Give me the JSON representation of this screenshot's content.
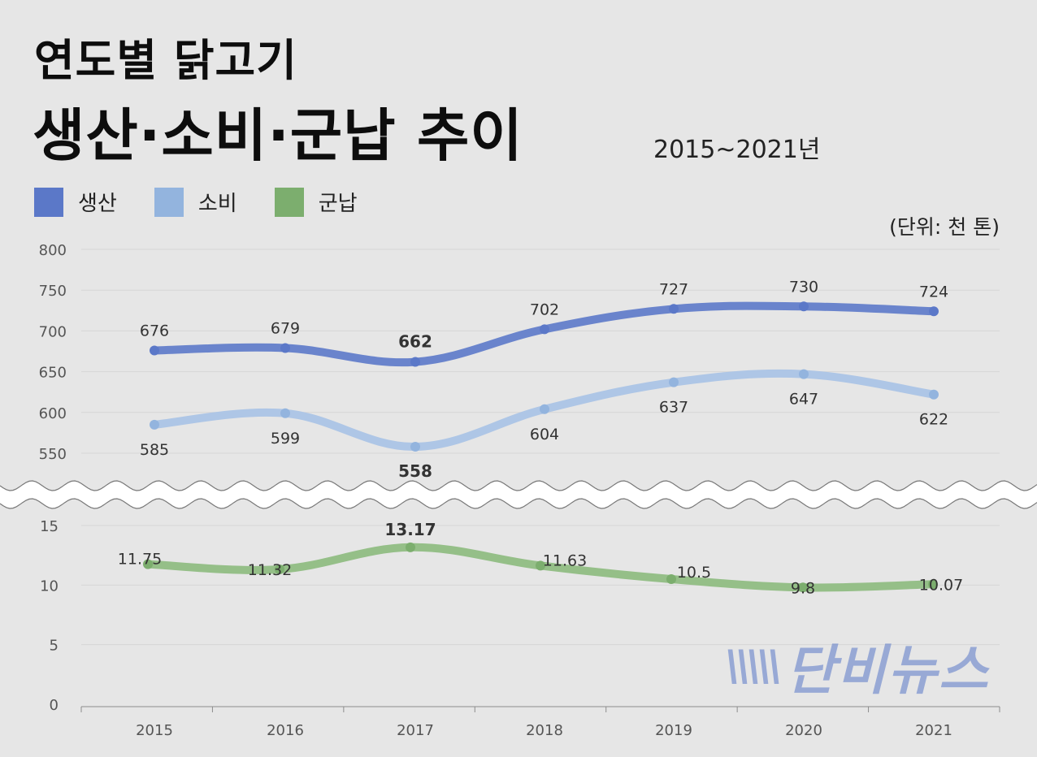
{
  "chart_data": {
    "type": "line",
    "title_line1": "연도별 닭고기",
    "title_line2": "생산·소비·군납 추이",
    "subtitle": "2015~2021년",
    "unit": "(단위: 천 톤)",
    "categories": [
      "2015",
      "2016",
      "2017",
      "2018",
      "2019",
      "2020",
      "2021"
    ],
    "legend_position": "top-left",
    "grid": true,
    "axis_break": true,
    "upper_axis": {
      "ylim": [
        550,
        800
      ],
      "ticks": [
        "800",
        "750",
        "700",
        "650",
        "600",
        "550"
      ]
    },
    "lower_axis": {
      "ylim": [
        0,
        15
      ],
      "ticks": [
        "15",
        "10",
        "5",
        "0"
      ]
    },
    "series": [
      {
        "name": "생산",
        "axis": "upper",
        "color": "#5b78c8",
        "line_color": "#6a84cc",
        "values": [
          676,
          679,
          662,
          702,
          727,
          730,
          724
        ],
        "labels": [
          "676",
          "679",
          "662",
          "702",
          "727",
          "730",
          "724"
        ]
      },
      {
        "name": "소비",
        "axis": "upper",
        "color": "#93b4de",
        "line_color": "#aec6e6",
        "values": [
          585,
          599,
          558,
          604,
          637,
          647,
          622
        ],
        "labels": [
          "585",
          "599",
          "558",
          "604",
          "637",
          "647",
          "622"
        ]
      },
      {
        "name": "군납",
        "axis": "lower",
        "color": "#7cae6e",
        "line_color": "#95bf88",
        "values": [
          11.75,
          11.32,
          13.17,
          11.63,
          10.5,
          9.8,
          10.07
        ],
        "labels": [
          "11.75",
          "11.32",
          "13.17",
          "11.63",
          "10.5",
          "9.8",
          "10.07"
        ]
      }
    ]
  },
  "watermark": {
    "marks": "\\\\\\\\\\",
    "text": "단비뉴스"
  }
}
